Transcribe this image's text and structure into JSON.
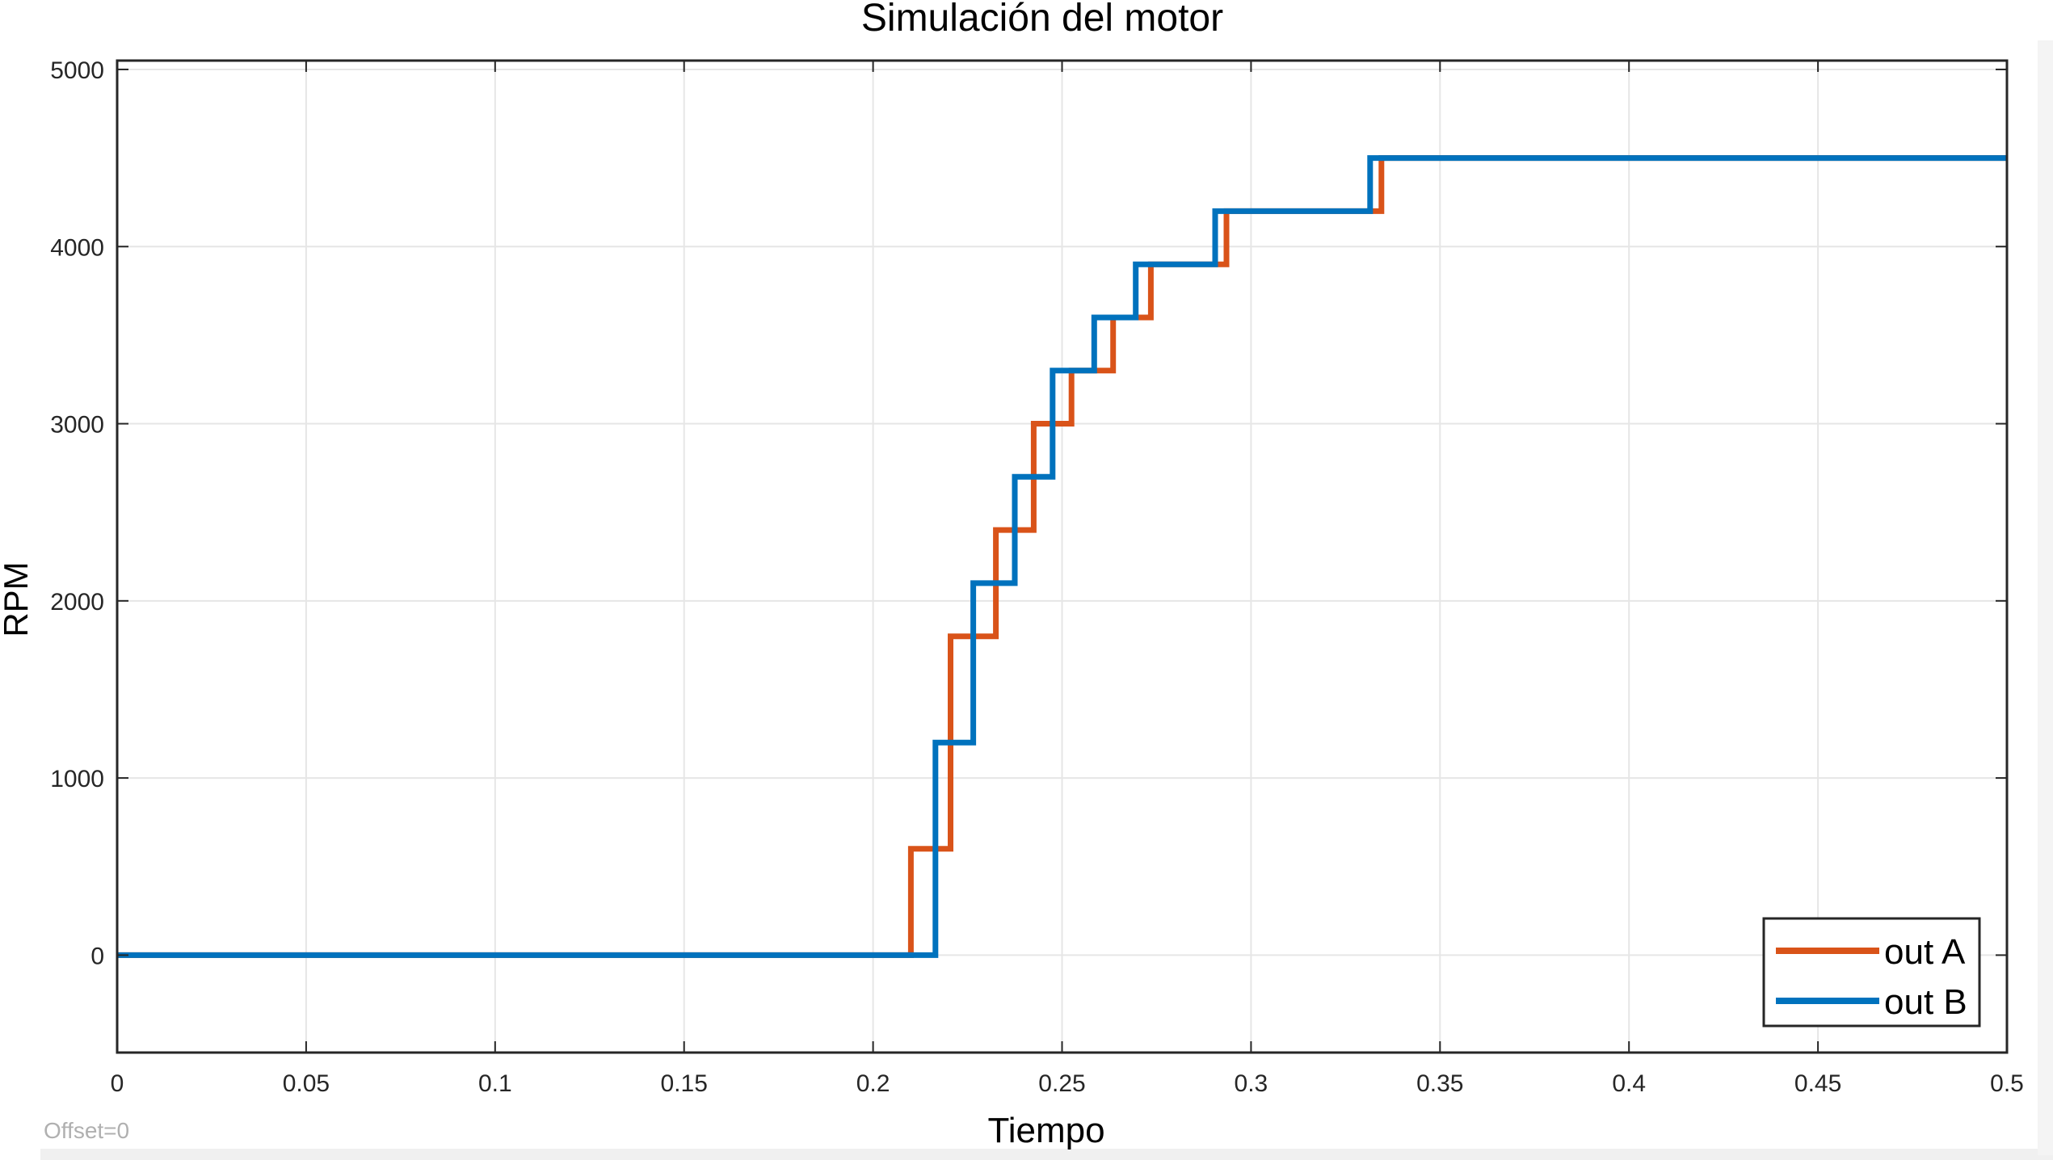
{
  "figure": {
    "title": "Simulación del motor",
    "xlabel": "Tiempo",
    "ylabel": "RPM",
    "footer_text": "Offset=0"
  },
  "colors": {
    "series_a": "#D95319",
    "series_b": "#0072BD",
    "grid": "#e6e6e6",
    "axes": "#262626",
    "footer": "#b0b0b0",
    "bottom_strip": "#f0f0f0"
  },
  "chart_data": {
    "type": "line",
    "title": "Simulación del motor",
    "xlabel": "Tiempo",
    "ylabel": "RPM",
    "xlim": [
      0,
      0.5
    ],
    "ylim": [
      -550,
      5050
    ],
    "xticks": [
      0,
      0.05,
      0.1,
      0.15,
      0.2,
      0.25,
      0.3,
      0.35,
      0.4,
      0.45,
      0.5
    ],
    "xtick_labels": [
      "0",
      "0.05",
      "0.1",
      "0.15",
      "0.2",
      "0.25",
      "0.3",
      "0.35",
      "0.4",
      "0.45",
      "0.5"
    ],
    "yticks": [
      0,
      1000,
      2000,
      3000,
      4000,
      5000
    ],
    "ytick_labels": [
      "0",
      "1000",
      "2000",
      "3000",
      "4000",
      "5000"
    ],
    "grid": true,
    "legend_position": "bottom-right",
    "step": true,
    "series": [
      {
        "name": "out A",
        "color": "#D95319",
        "points": [
          [
            0,
            0
          ],
          [
            0.21,
            0
          ],
          [
            0.21,
            600
          ],
          [
            0.2205,
            600
          ],
          [
            0.2205,
            1800
          ],
          [
            0.2325,
            1800
          ],
          [
            0.2325,
            2400
          ],
          [
            0.2425,
            2400
          ],
          [
            0.2425,
            3000
          ],
          [
            0.2525,
            3000
          ],
          [
            0.2525,
            3300
          ],
          [
            0.2635,
            3300
          ],
          [
            0.2635,
            3600
          ],
          [
            0.2735,
            3600
          ],
          [
            0.2735,
            3900
          ],
          [
            0.2935,
            3900
          ],
          [
            0.2935,
            4200
          ],
          [
            0.3345,
            4200
          ],
          [
            0.3345,
            4500
          ],
          [
            0.5,
            4500
          ]
        ]
      },
      {
        "name": "out B",
        "color": "#0072BD",
        "points": [
          [
            0,
            0
          ],
          [
            0.2165,
            0
          ],
          [
            0.2165,
            1200
          ],
          [
            0.2265,
            1200
          ],
          [
            0.2265,
            2100
          ],
          [
            0.2375,
            2100
          ],
          [
            0.2375,
            2700
          ],
          [
            0.2475,
            2700
          ],
          [
            0.2475,
            3300
          ],
          [
            0.2585,
            3300
          ],
          [
            0.2585,
            3600
          ],
          [
            0.2695,
            3600
          ],
          [
            0.2695,
            3900
          ],
          [
            0.2905,
            3900
          ],
          [
            0.2905,
            4200
          ],
          [
            0.3315,
            4200
          ],
          [
            0.3315,
            4500
          ],
          [
            0.5,
            4500
          ]
        ]
      }
    ]
  }
}
